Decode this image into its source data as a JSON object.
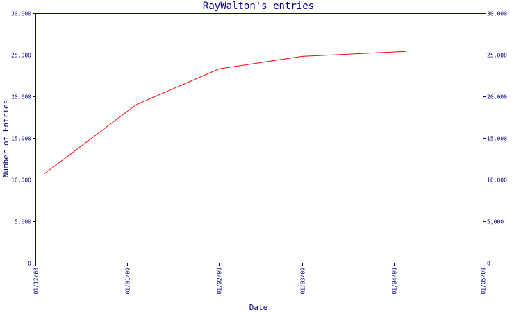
{
  "chart_data": {
    "type": "line",
    "title": "RayWalton's entries",
    "xlabel": "Date",
    "ylabel": "Number of Entries",
    "ylim": [
      0,
      30000
    ],
    "xlim": [
      "2008-12-01",
      "2009-05-01"
    ],
    "y_ticks": [
      {
        "value": 0,
        "label": "0"
      },
      {
        "value": 5000,
        "label": "5,000"
      },
      {
        "value": 10000,
        "label": "10,000"
      },
      {
        "value": 15000,
        "label": "15,000"
      },
      {
        "value": 20000,
        "label": "20,000"
      },
      {
        "value": 25000,
        "label": "25,000"
      },
      {
        "value": 30000,
        "label": "30,000"
      }
    ],
    "x_ticks": [
      {
        "date": "2008-12-01",
        "label": "01/12/08"
      },
      {
        "date": "2009-01-01",
        "label": "01/01/09"
      },
      {
        "date": "2009-02-01",
        "label": "01/02/09"
      },
      {
        "date": "2009-03-01",
        "label": "01/03/09"
      },
      {
        "date": "2009-04-01",
        "label": "01/04/09"
      },
      {
        "date": "2009-05-01",
        "label": "01/05/09"
      }
    ],
    "grid": false,
    "right_axis": true,
    "series": [
      {
        "color": "#ff0000",
        "x": [
          "2008-12-04",
          "2009-01-04",
          "2009-02-01",
          "2009-03-01",
          "2009-04-05"
        ],
        "y": [
          10700,
          19000,
          23300,
          24800,
          25400
        ]
      }
    ]
  }
}
